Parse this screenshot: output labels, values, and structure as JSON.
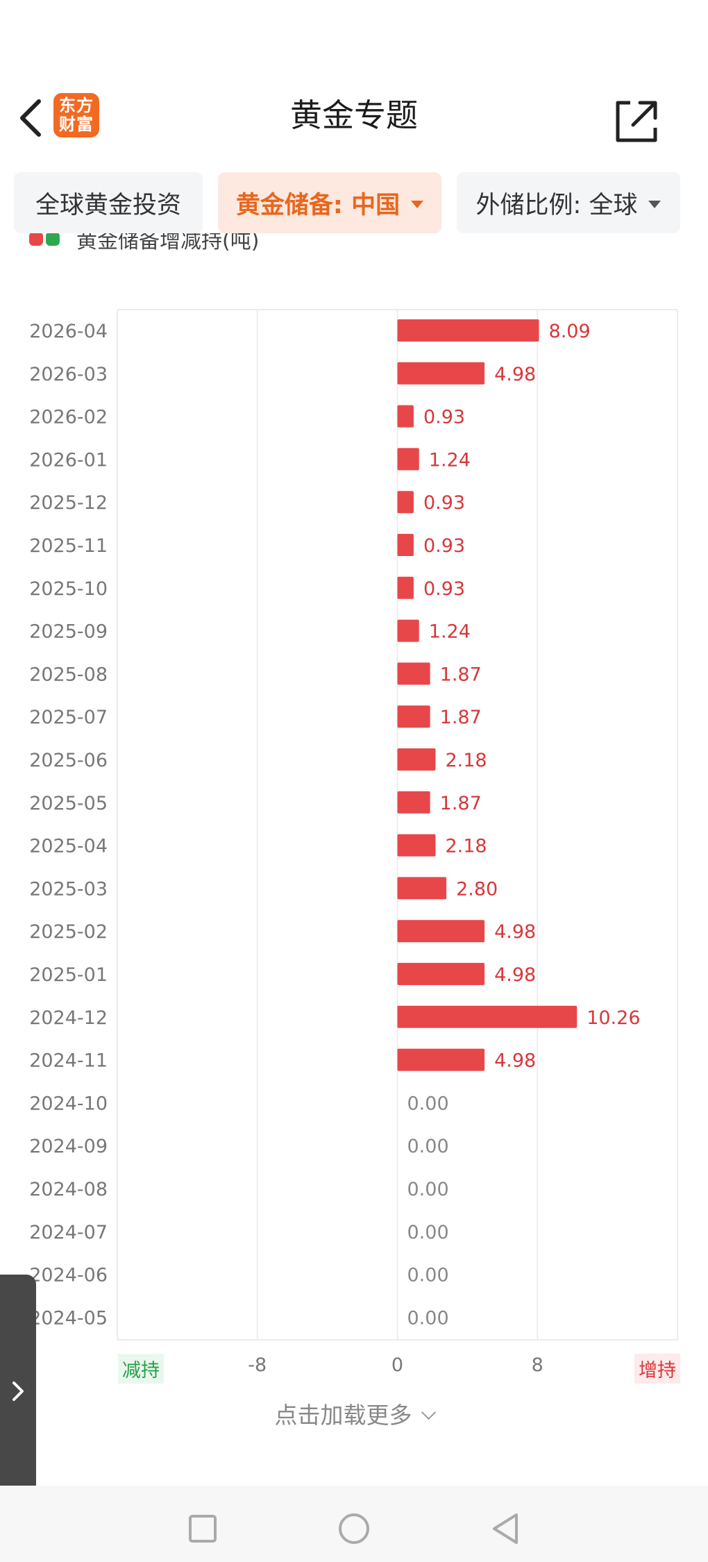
{
  "header": {
    "title": "黄金专题",
    "logo_line1": "东方",
    "logo_line2": "财富",
    "brand_color": "#f26a22"
  },
  "tabs": [
    {
      "label": "全球黄金投资",
      "active": false
    },
    {
      "label": "黄金储备: 中国",
      "active": true
    },
    {
      "label": "外储比例: 全球",
      "active": false
    }
  ],
  "legend": {
    "label": "黄金储备增减持(吨)",
    "increase_color": "#e8474a",
    "decrease_color": "#2ea84f"
  },
  "chart_data": {
    "type": "bar",
    "orientation": "horizontal",
    "categories": [
      "2026-04",
      "2026-03",
      "2026-02",
      "2026-01",
      "2025-12",
      "2025-11",
      "2025-10",
      "2025-09",
      "2025-08",
      "2025-07",
      "2025-06",
      "2025-05",
      "2025-04",
      "2025-03",
      "2025-02",
      "2025-01",
      "2024-12",
      "2024-11",
      "2024-10",
      "2024-09",
      "2024-08",
      "2024-07",
      "2024-06",
      "2024-05"
    ],
    "values": [
      8.09,
      4.98,
      0.93,
      1.24,
      0.93,
      0.93,
      0.93,
      1.24,
      1.87,
      1.87,
      2.18,
      1.87,
      2.18,
      2.8,
      4.98,
      4.98,
      10.26,
      4.98,
      0.0,
      0.0,
      0.0,
      0.0,
      0.0,
      0.0
    ],
    "value_labels": [
      "8.09",
      "4.98",
      "0.93",
      "1.24",
      "0.93",
      "0.93",
      "0.93",
      "1.24",
      "1.87",
      "1.87",
      "2.18",
      "1.87",
      "2.18",
      "2.80",
      "4.98",
      "4.98",
      "10.26",
      "4.98",
      "0.00",
      "0.00",
      "0.00",
      "0.00",
      "0.00",
      "0.00"
    ],
    "xlim": [
      -16,
      16
    ],
    "xticks": [
      "-8",
      "0",
      "8"
    ],
    "xtick_values": [
      -8,
      0,
      8
    ],
    "axis_end_left": "减持",
    "axis_end_right": "增持",
    "bar_color": "#e8474a",
    "grid": true
  },
  "load_more": "点击加载更多"
}
